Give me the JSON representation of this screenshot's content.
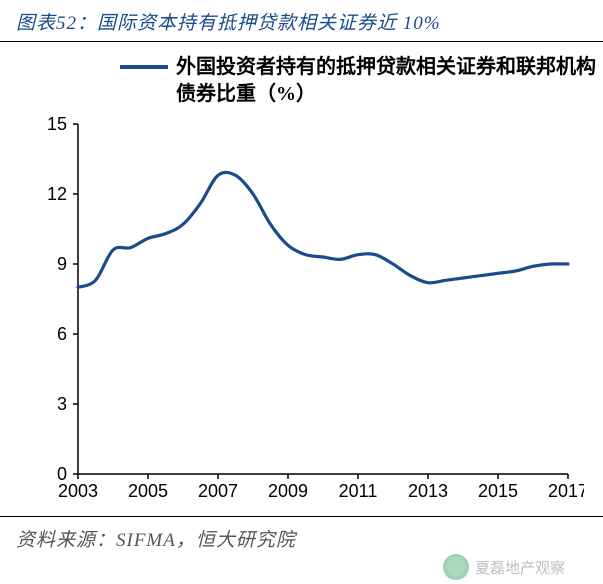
{
  "title": "图表52：国际资本持有抵押贷款相关证券近 10%",
  "legend": {
    "label": "外国投资者持有的抵押贷款相关证券和联邦机构债券比重（%）",
    "color": "#1a4b8c"
  },
  "chart": {
    "type": "line",
    "series_color": "#1a4b8c",
    "line_width": 3.2,
    "background_color": "#ffffff",
    "axis_color": "#000000",
    "axis_width": 1.5,
    "tick_length": 5,
    "tick_font_size": 18,
    "x": {
      "min": 2003,
      "max": 2017,
      "ticks": [
        2003,
        2005,
        2007,
        2009,
        2011,
        2013,
        2015,
        2017
      ]
    },
    "y": {
      "min": 0,
      "max": 15,
      "ticks": [
        0,
        3,
        6,
        9,
        12,
        15
      ]
    },
    "points": [
      {
        "x": 2003.0,
        "y": 8.0
      },
      {
        "x": 2003.5,
        "y": 8.3
      },
      {
        "x": 2004.0,
        "y": 9.6
      },
      {
        "x": 2004.5,
        "y": 9.7
      },
      {
        "x": 2005.0,
        "y": 10.1
      },
      {
        "x": 2005.5,
        "y": 10.3
      },
      {
        "x": 2006.0,
        "y": 10.7
      },
      {
        "x": 2006.5,
        "y": 11.6
      },
      {
        "x": 2007.0,
        "y": 12.8
      },
      {
        "x": 2007.5,
        "y": 12.8
      },
      {
        "x": 2008.0,
        "y": 12.0
      },
      {
        "x": 2008.5,
        "y": 10.7
      },
      {
        "x": 2009.0,
        "y": 9.8
      },
      {
        "x": 2009.5,
        "y": 9.4
      },
      {
        "x": 2010.0,
        "y": 9.3
      },
      {
        "x": 2010.5,
        "y": 9.2
      },
      {
        "x": 2011.0,
        "y": 9.4
      },
      {
        "x": 2011.5,
        "y": 9.4
      },
      {
        "x": 2012.0,
        "y": 9.0
      },
      {
        "x": 2012.5,
        "y": 8.5
      },
      {
        "x": 2013.0,
        "y": 8.2
      },
      {
        "x": 2013.5,
        "y": 8.3
      },
      {
        "x": 2014.0,
        "y": 8.4
      },
      {
        "x": 2014.5,
        "y": 8.5
      },
      {
        "x": 2015.0,
        "y": 8.6
      },
      {
        "x": 2015.5,
        "y": 8.7
      },
      {
        "x": 2016.0,
        "y": 8.9
      },
      {
        "x": 2016.5,
        "y": 9.0
      },
      {
        "x": 2017.0,
        "y": 9.0
      }
    ]
  },
  "source": "资料来源：SIFMA，恒大研究院",
  "watermark": "夏磊地产观察"
}
